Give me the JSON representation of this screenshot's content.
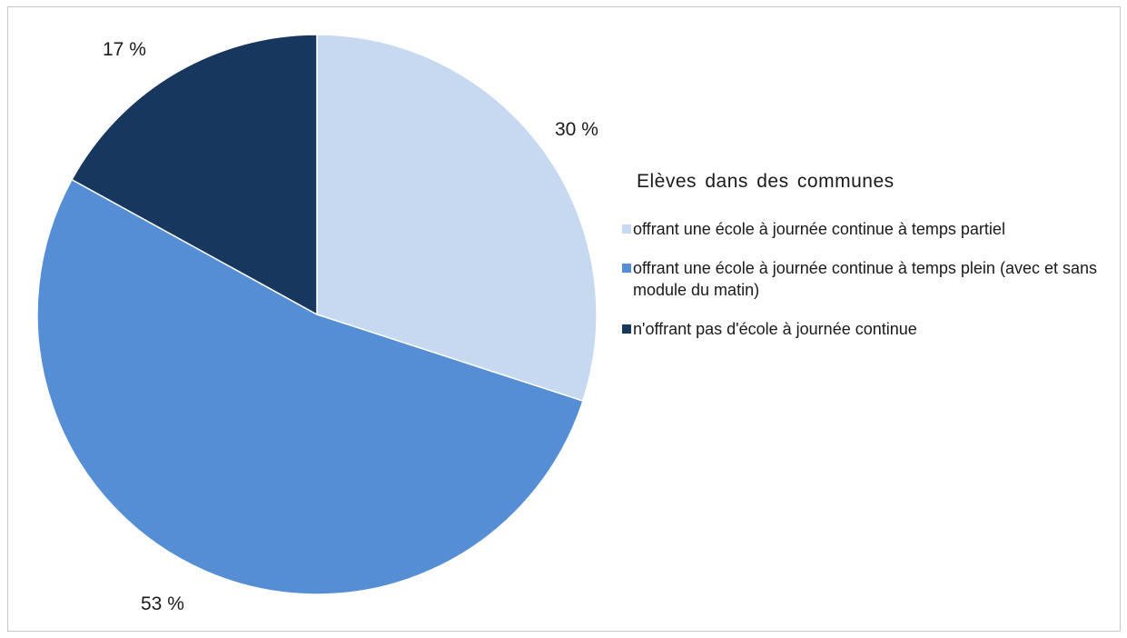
{
  "chart_data": {
    "type": "pie",
    "title": "",
    "legend_title": "Elèves dans des communes",
    "legend_position": "right",
    "start_angle_deg": 0,
    "direction": "clockwise",
    "slices": [
      {
        "label": "offrant une école à journée continue à temps partiel",
        "value": 30,
        "display": "30 %",
        "color": "#c6d9f1"
      },
      {
        "label": "offrant une école à journée continue à temps plein (avec et sans module du matin)",
        "value": 53,
        "display": "53 %",
        "color": "#558ed5"
      },
      {
        "label": "n'offrant pas d'école à journée continue",
        "value": 17,
        "display": "17 %",
        "color": "#17375e"
      }
    ]
  }
}
